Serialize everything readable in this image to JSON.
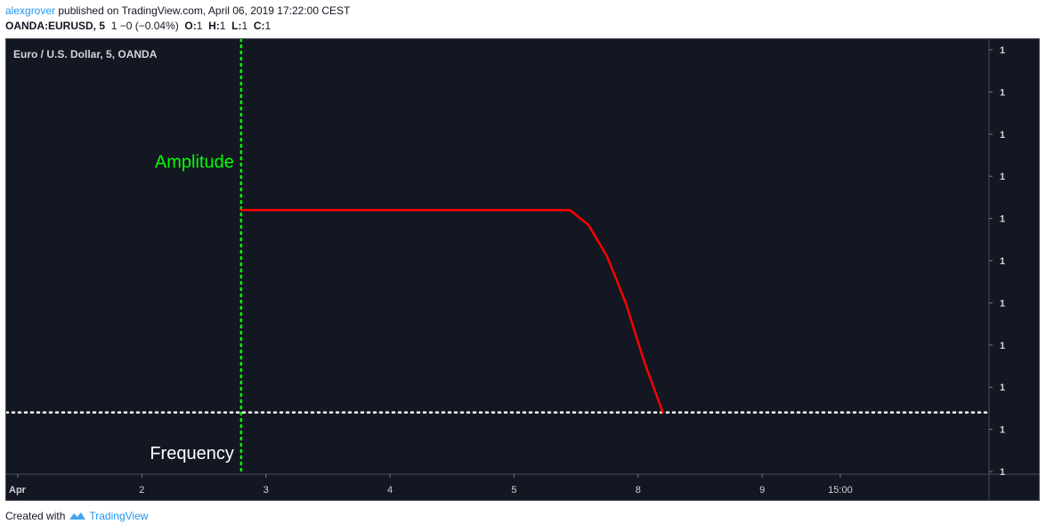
{
  "header": {
    "author": "alexgrover",
    "published_text": " published on TradingView.com, April 06, 2019 17:22:00 CEST"
  },
  "quote": {
    "symbol": "OANDA:EURUSD, 5",
    "change": "1 −0 (−0.04%)",
    "o_label": "O:",
    "o_value": "1",
    "h_label": "H:",
    "h_value": "1",
    "l_label": "L:",
    "l_value": "1",
    "c_label": "C:",
    "c_value": "1"
  },
  "colors": {
    "background": "#131722",
    "line": "#ff0000",
    "amplitude_marker": "#00ff00",
    "frequency_marker": "#ffffff",
    "axis_text": "#d1d4dc",
    "brand": "#2196f3"
  },
  "chart_data": {
    "type": "line",
    "title": "Euro / U.S. Dollar, 5, OANDA",
    "x_ticks": [
      "Apr",
      "2",
      "3",
      "4",
      "5",
      "8",
      "9",
      "15:00"
    ],
    "y_ticks": [
      "1",
      "1",
      "1",
      "1",
      "1",
      "1",
      "1",
      "1",
      "1",
      "1",
      "1"
    ],
    "x_range": [
      0,
      7.8
    ],
    "y_range": [
      0,
      10
    ],
    "series": [
      {
        "color": "#ff0000",
        "x": [
          1.8,
          4.45,
          4.6,
          4.75,
          4.9,
          5.05,
          5.2
        ],
        "y": [
          6.2,
          6.2,
          5.85,
          5.1,
          4.0,
          2.6,
          1.4
        ]
      }
    ],
    "annotations": [
      {
        "text": "Amplitude",
        "color": "#00ff00",
        "x": 1.8,
        "y": 7.2
      },
      {
        "text": "Frequency",
        "color": "#ffffff",
        "x": 1.8,
        "y": 0.3
      }
    ],
    "vertical_marker": {
      "x": 1.8,
      "style": "dotted",
      "color": "#00ff00"
    },
    "horizontal_marker": {
      "y": 1.4,
      "style": "dotted",
      "color": "#ffffff"
    },
    "grid": false
  },
  "footer": {
    "created_with": "Created with",
    "brand": "TradingView"
  }
}
